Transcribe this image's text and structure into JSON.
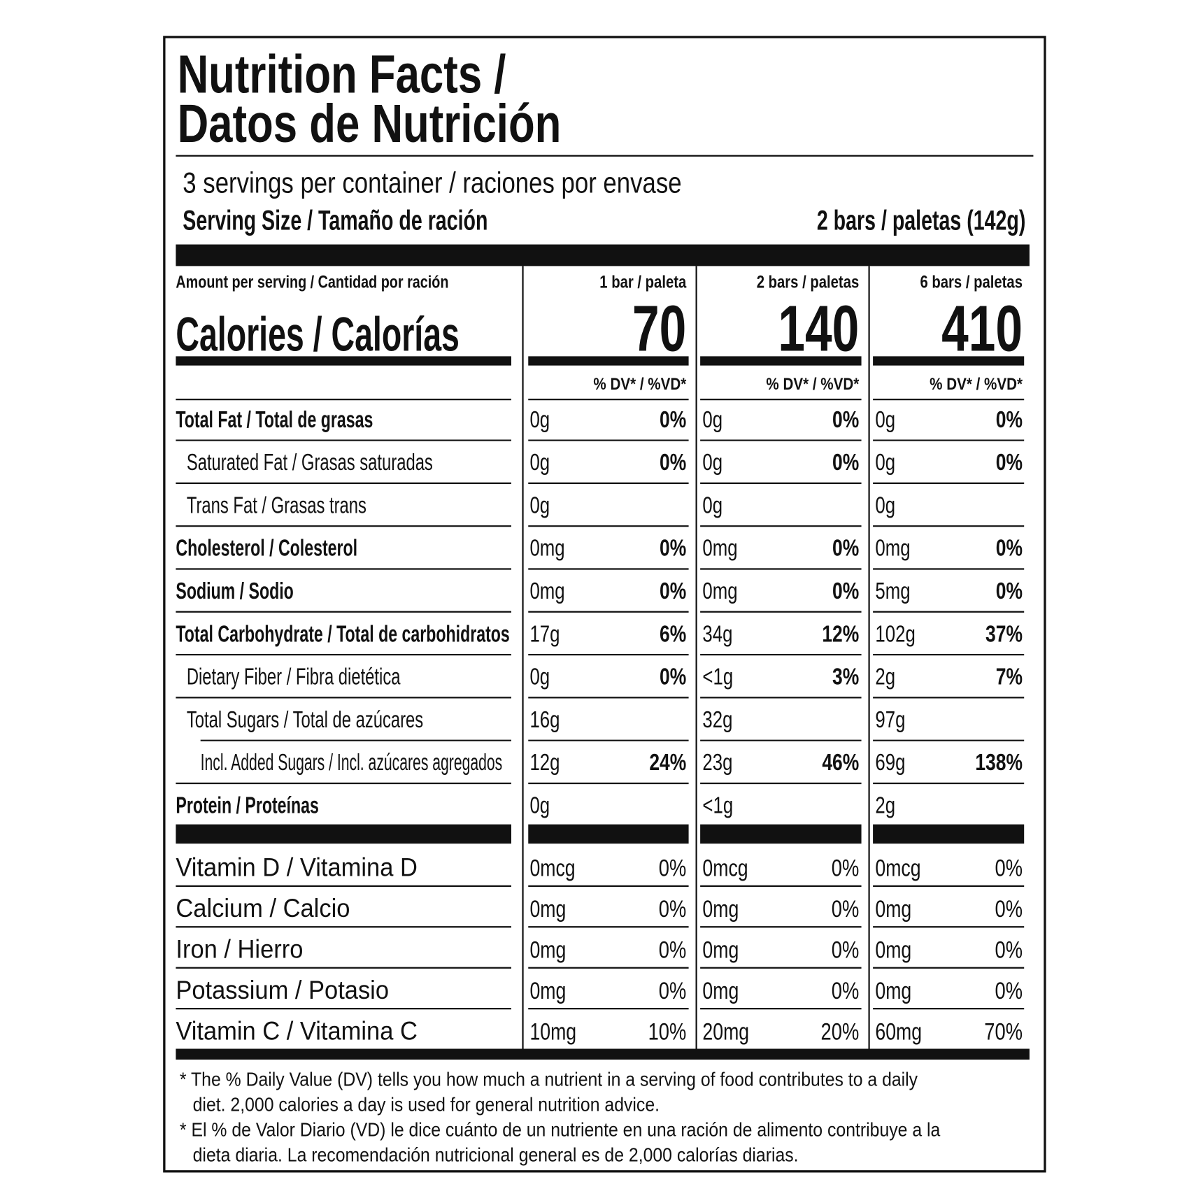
{
  "title": {
    "line1": "Nutrition Facts /",
    "line2": "Datos de Nutrición"
  },
  "servings": "3 servings per container / raciones por envase",
  "serving_size": {
    "label": "Serving Size / Tamaño de ración",
    "value": "2 bars / paletas (142g)"
  },
  "amount_per_serving": "Amount per serving / Cantidad por ración",
  "calories_label": "Calories / Calorías",
  "columns": [
    {
      "header": "1 bar / paleta",
      "calories": 70,
      "dv_header": "% DV* / %VD*"
    },
    {
      "header": "2 bars / paletas",
      "calories": 140,
      "dv_header": "% DV* / %VD*"
    },
    {
      "header": "6 bars / paletas",
      "calories": 410,
      "dv_header": "% DV* / %VD*"
    }
  ],
  "nutrients": [
    {
      "name": "Total Fat / Total de grasas",
      "level": "main",
      "values": [
        {
          "amount": "0g",
          "dv": "0%"
        },
        {
          "amount": "0g",
          "dv": "0%"
        },
        {
          "amount": "0g",
          "dv": "0%"
        }
      ]
    },
    {
      "name": "Saturated Fat / Grasas saturadas",
      "level": "sub",
      "values": [
        {
          "amount": "0g",
          "dv": "0%"
        },
        {
          "amount": "0g",
          "dv": "0%"
        },
        {
          "amount": "0g",
          "dv": "0%"
        }
      ]
    },
    {
      "name": "Trans Fat / Grasas trans",
      "level": "sub",
      "values": [
        {
          "amount": "0g"
        },
        {
          "amount": "0g"
        },
        {
          "amount": "0g"
        }
      ]
    },
    {
      "name": "Cholesterol / Colesterol",
      "level": "main",
      "values": [
        {
          "amount": "0mg",
          "dv": "0%"
        },
        {
          "amount": "0mg",
          "dv": "0%"
        },
        {
          "amount": "0mg",
          "dv": "0%"
        }
      ]
    },
    {
      "name": "Sodium / Sodio",
      "level": "main",
      "values": [
        {
          "amount": "0mg",
          "dv": "0%"
        },
        {
          "amount": "0mg",
          "dv": "0%"
        },
        {
          "amount": "5mg",
          "dv": "0%"
        }
      ]
    },
    {
      "name": "Total Carbohydrate / Total de carbohidratos",
      "level": "main",
      "values": [
        {
          "amount": "17g",
          "dv": "6%"
        },
        {
          "amount": "34g",
          "dv": "12%"
        },
        {
          "amount": "102g",
          "dv": "37%"
        }
      ]
    },
    {
      "name": "Dietary Fiber / Fibra dietética",
      "level": "sub",
      "values": [
        {
          "amount": "0g",
          "dv": "0%"
        },
        {
          "amount": "<1g",
          "dv": "3%"
        },
        {
          "amount": "2g",
          "dv": "7%"
        }
      ]
    },
    {
      "name": "Total Sugars / Total de azúcares",
      "level": "sub",
      "values": [
        {
          "amount": "16g"
        },
        {
          "amount": "32g"
        },
        {
          "amount": "97g"
        }
      ]
    },
    {
      "name": "Incl. Added Sugars / Incl. azúcares agregados",
      "level": "subsub",
      "values": [
        {
          "amount": "12g",
          "dv": "24%"
        },
        {
          "amount": "23g",
          "dv": "46%"
        },
        {
          "amount": "69g",
          "dv": "138%"
        }
      ]
    },
    {
      "name": "Protein / Proteínas",
      "level": "main",
      "values": [
        {
          "amount": "0g"
        },
        {
          "amount": "<1g"
        },
        {
          "amount": "2g"
        }
      ]
    }
  ],
  "vitamins": [
    {
      "name": "Vitamin D / Vitamina D",
      "values": [
        {
          "amount": "0mcg",
          "dv": "0%"
        },
        {
          "amount": "0mcg",
          "dv": "0%"
        },
        {
          "amount": "0mcg",
          "dv": "0%"
        }
      ]
    },
    {
      "name": "Calcium / Calcio",
      "values": [
        {
          "amount": "0mg",
          "dv": "0%"
        },
        {
          "amount": "0mg",
          "dv": "0%"
        },
        {
          "amount": "0mg",
          "dv": "0%"
        }
      ]
    },
    {
      "name": "Iron / Hierro",
      "values": [
        {
          "amount": "0mg",
          "dv": "0%"
        },
        {
          "amount": "0mg",
          "dv": "0%"
        },
        {
          "amount": "0mg",
          "dv": "0%"
        }
      ]
    },
    {
      "name": "Potassium / Potasio",
      "values": [
        {
          "amount": "0mg",
          "dv": "0%"
        },
        {
          "amount": "0mg",
          "dv": "0%"
        },
        {
          "amount": "0mg",
          "dv": "0%"
        }
      ]
    },
    {
      "name": "Vitamin C / Vitamina C",
      "values": [
        {
          "amount": "10mg",
          "dv": "10%"
        },
        {
          "amount": "20mg",
          "dv": "20%"
        },
        {
          "amount": "60mg",
          "dv": "70%"
        }
      ]
    }
  ],
  "footnotes": [
    [
      "* The % Daily Value (DV) tells you how much a nutrient in a serving of food contributes to a daily",
      "diet. 2,000 calories a day is used for general nutrition advice."
    ],
    [
      "* El % de Valor Diario (VD) le dice cuánto de un nutriente en una ración de alimento contribuye a la",
      "dieta diaria. La recomendación nutricional general es de 2,000 calorías diarias."
    ]
  ]
}
